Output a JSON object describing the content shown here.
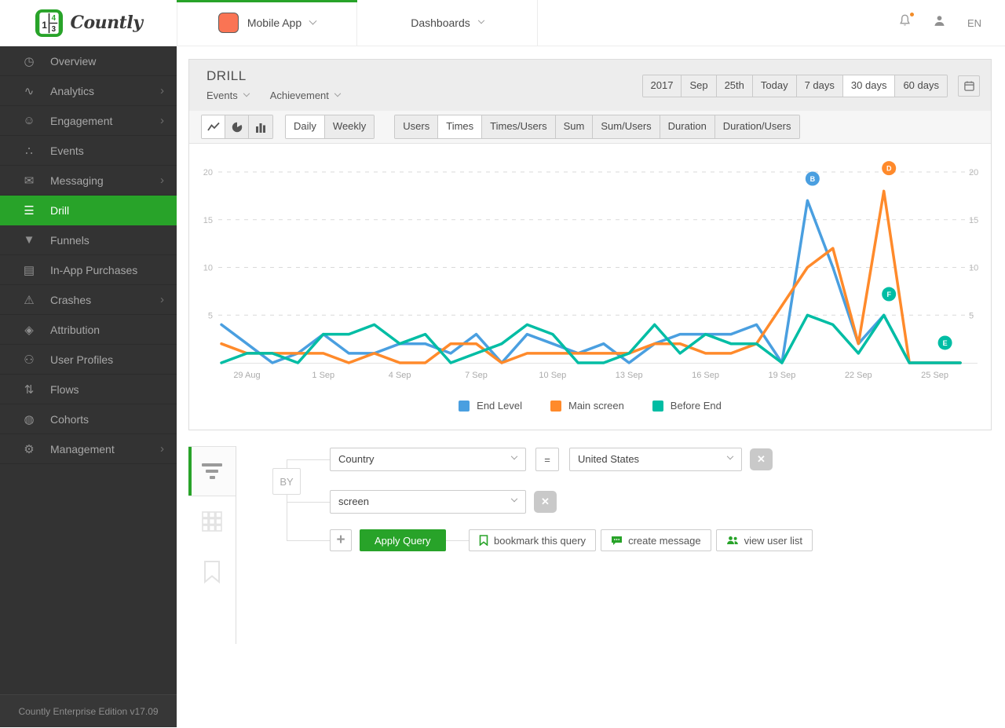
{
  "colors": {
    "brand_green": "#28a329",
    "app_square_orange": "#fa7454",
    "series_blue": "#4a9fe0",
    "series_orange": "#ff8a2b",
    "series_teal": "#00bda4"
  },
  "header": {
    "brand": "Countly",
    "app_selector": {
      "label": "Mobile App"
    },
    "dashboards": {
      "label": "Dashboards"
    },
    "language": "EN"
  },
  "sidebar": {
    "items": [
      {
        "label": "Overview",
        "icon": "gauge-icon",
        "active": false,
        "expandable": false
      },
      {
        "label": "Analytics",
        "icon": "pulse-icon",
        "active": false,
        "expandable": true
      },
      {
        "label": "Engagement",
        "icon": "smiley-icon",
        "active": false,
        "expandable": true
      },
      {
        "label": "Events",
        "icon": "dots-icon",
        "active": false,
        "expandable": false
      },
      {
        "label": "Messaging",
        "icon": "envelope-icon",
        "active": false,
        "expandable": true
      },
      {
        "label": "Drill",
        "icon": "filter-icon",
        "active": true,
        "expandable": false
      },
      {
        "label": "Funnels",
        "icon": "funnel-icon",
        "active": false,
        "expandable": false
      },
      {
        "label": "In-App Purchases",
        "icon": "card-icon",
        "active": false,
        "expandable": false
      },
      {
        "label": "Crashes",
        "icon": "warning-icon",
        "active": false,
        "expandable": true
      },
      {
        "label": "Attribution",
        "icon": "tag-icon",
        "active": false,
        "expandable": false
      },
      {
        "label": "User Profiles",
        "icon": "users-icon",
        "active": false,
        "expandable": false
      },
      {
        "label": "Flows",
        "icon": "flows-icon",
        "active": false,
        "expandable": false
      },
      {
        "label": "Cohorts",
        "icon": "cohorts-icon",
        "active": false,
        "expandable": false
      },
      {
        "label": "Management",
        "icon": "gear-icon",
        "active": false,
        "expandable": true
      }
    ],
    "footer": "Countly Enterprise Edition v17.09"
  },
  "drill": {
    "title": "DRILL",
    "event_type_label": "Events",
    "event_label": "Achievement",
    "date_buttons": [
      "2017",
      "Sep",
      "25th",
      "Today",
      "7 days",
      "30 days",
      "60 days"
    ],
    "active_date": "30 days",
    "chart_type_buttons": [
      "line",
      "pie",
      "bar"
    ],
    "active_chart_type": "line",
    "period_buttons": [
      "Daily",
      "Weekly"
    ],
    "active_period": "Daily",
    "metric_buttons": [
      "Users",
      "Times",
      "Times/Users",
      "Sum",
      "Sum/Users",
      "Duration",
      "Duration/Users"
    ],
    "active_metric": "Times"
  },
  "chart_data": {
    "type": "line",
    "ylim": [
      0,
      20
    ],
    "y_ticks": [
      5,
      10,
      15,
      20
    ],
    "grid": "dashed-horizontal",
    "legend_position": "bottom-center",
    "x_ticks": [
      {
        "index": 1,
        "label": "29 Aug"
      },
      {
        "index": 4,
        "label": "1 Sep"
      },
      {
        "index": 7,
        "label": "4 Sep"
      },
      {
        "index": 10,
        "label": "7 Sep"
      },
      {
        "index": 13,
        "label": "10 Sep"
      },
      {
        "index": 16,
        "label": "13 Sep"
      },
      {
        "index": 19,
        "label": "16 Sep"
      },
      {
        "index": 22,
        "label": "19 Sep"
      },
      {
        "index": 25,
        "label": "22 Sep"
      },
      {
        "index": 28,
        "label": "25 Sep"
      }
    ],
    "series": [
      {
        "name": "End Level",
        "color": "#4a9fe0",
        "values": [
          4,
          2,
          0,
          1,
          3,
          1,
          1,
          2,
          2,
          1,
          3,
          0,
          3,
          2,
          1,
          2,
          0,
          2,
          3,
          3,
          3,
          4,
          0,
          17,
          10,
          2,
          5,
          0,
          0,
          0
        ]
      },
      {
        "name": "Main screen",
        "color": "#ff8a2b",
        "values": [
          2,
          1,
          1,
          1,
          1,
          0,
          1,
          0,
          0,
          2,
          2,
          0,
          1,
          1,
          1,
          1,
          1,
          2,
          2,
          1,
          1,
          2,
          6,
          10,
          12,
          2,
          18,
          0,
          0,
          0
        ]
      },
      {
        "name": "Before End",
        "color": "#00bda4",
        "values": [
          0,
          1,
          1,
          0,
          3,
          3,
          4,
          2,
          3,
          0,
          1,
          2,
          4,
          3,
          0,
          0,
          1,
          4,
          1,
          3,
          2,
          2,
          0,
          5,
          4,
          1,
          5,
          0,
          0,
          0
        ]
      }
    ],
    "annotations": [
      {
        "label": "B",
        "x_index": 23.2,
        "value": 19.3,
        "color": "#4a9fe0"
      },
      {
        "label": "D",
        "x_index": 26.2,
        "value": 20.4,
        "color": "#ff8a2b"
      },
      {
        "label": "F",
        "x_index": 26.2,
        "value": 7.2,
        "color": "#00bda4"
      },
      {
        "label": "E",
        "x_index": 28.4,
        "value": 2.1,
        "color": "#00bda4"
      }
    ]
  },
  "query": {
    "by_label": "BY",
    "rows": [
      {
        "field": "Country",
        "operator": "=",
        "value": "United States"
      },
      {
        "field": "screen"
      }
    ],
    "plus_label": "+",
    "delete_label": "✕",
    "apply_label": "Apply Query",
    "actions": [
      {
        "label": "bookmark this query",
        "icon": "bookmark-icon"
      },
      {
        "label": "create message",
        "icon": "chat-icon"
      },
      {
        "label": "view user list",
        "icon": "user-group-icon"
      }
    ]
  }
}
